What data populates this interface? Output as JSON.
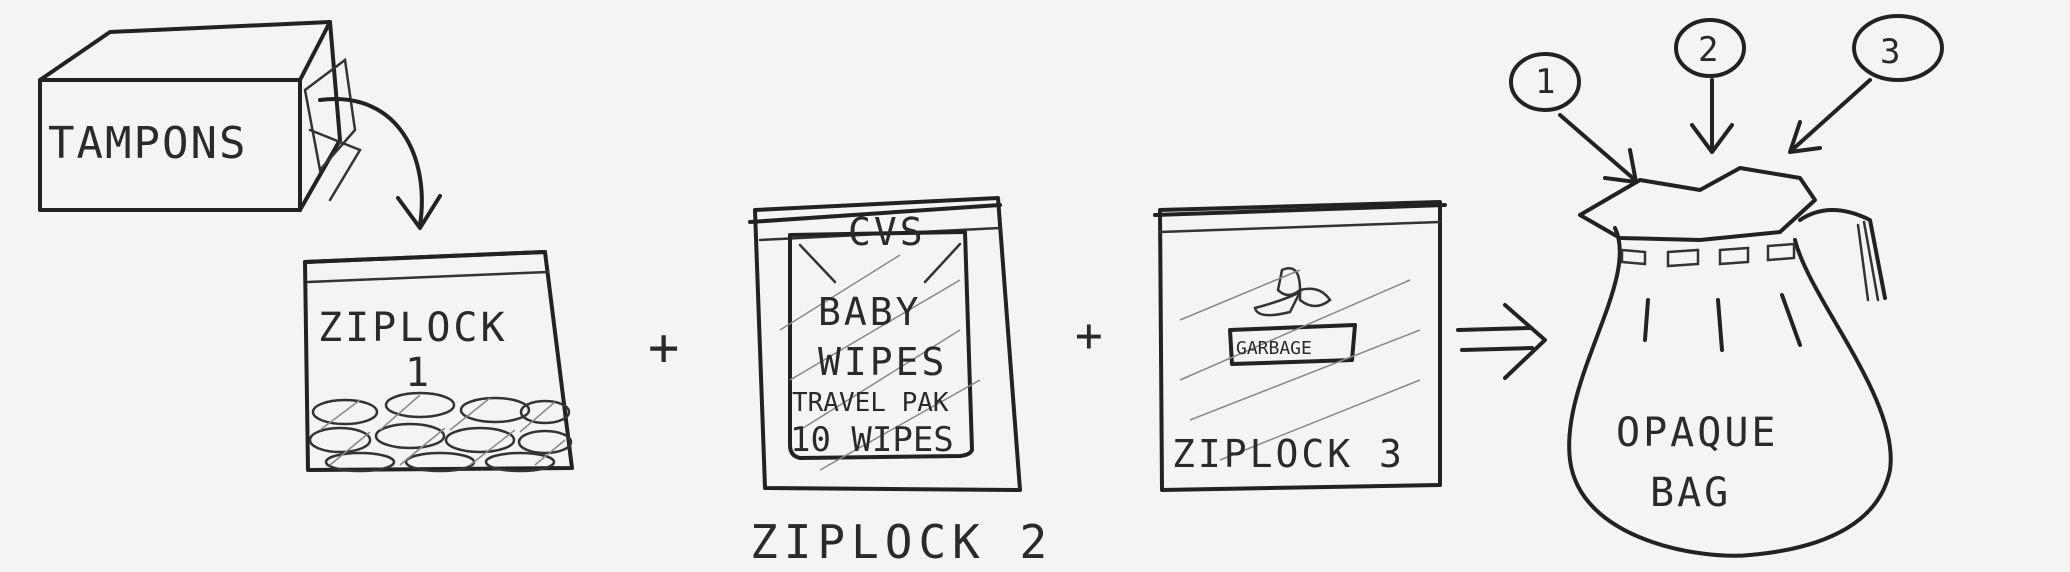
{
  "tampons_box": {
    "label": "TAMPONS"
  },
  "ziplock_1": {
    "label_line1": "ZIPLOCK",
    "label_line2": "1"
  },
  "plus_signs": [
    "+",
    "+"
  ],
  "ziplock_2": {
    "wipes_brand": "CVS",
    "wipes_line1": "BABY",
    "wipes_line2": "WIPES",
    "wipes_line3": "TRAVEL PAK",
    "wipes_line4": "10 WIPES",
    "caption": "ZIPLOCK 2"
  },
  "ziplock_3": {
    "garbage_label": "GARBAGE",
    "label": "ZIPLOCK 3"
  },
  "opaque_bag": {
    "label_line1": "OPAQUE",
    "label_line2": "BAG",
    "callouts": [
      "1",
      "2",
      "3"
    ]
  },
  "colors": {
    "ink": "#222222",
    "paper": "#f4f4f2"
  },
  "icons": [
    "curved-arrow-icon",
    "implies-arrow-icon",
    "trash-bag-icon"
  ]
}
